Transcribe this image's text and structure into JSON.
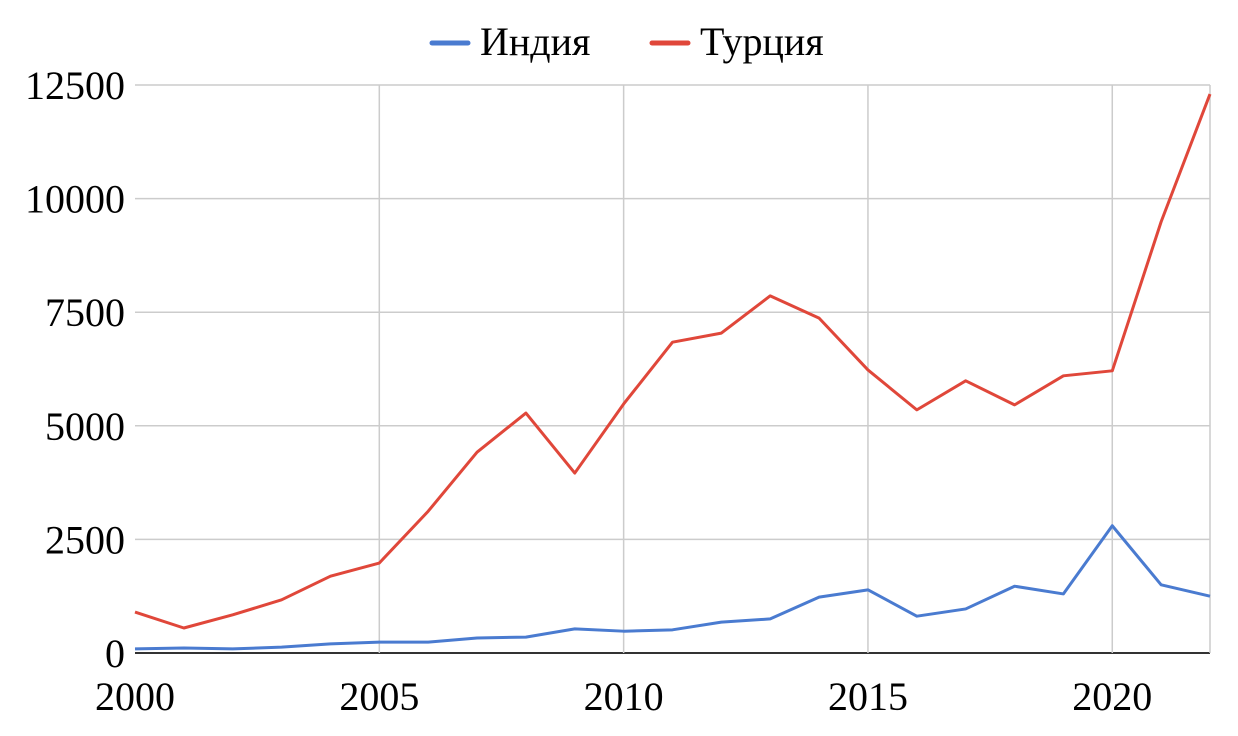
{
  "chart_data": {
    "type": "line",
    "x": [
      2000,
      2001,
      2002,
      2003,
      2004,
      2005,
      2006,
      2007,
      2008,
      2009,
      2010,
      2011,
      2012,
      2013,
      2014,
      2015,
      2016,
      2017,
      2018,
      2019,
      2020,
      2021,
      2022
    ],
    "series": [
      {
        "name": "Индия",
        "color": "#4a7bd0",
        "values": [
          90,
          110,
          90,
          130,
          200,
          240,
          240,
          330,
          350,
          530,
          480,
          510,
          680,
          750,
          1230,
          1390,
          810,
          970,
          1470,
          1300,
          2800,
          1500,
          1250
        ]
      },
      {
        "name": "Турция",
        "color": "#e0473a",
        "values": [
          900,
          550,
          840,
          1170,
          1690,
          1980,
          3120,
          4420,
          5280,
          3960,
          5480,
          6840,
          7040,
          7860,
          7370,
          6230,
          5350,
          5990,
          5460,
          6100,
          6210,
          9490,
          12300
        ]
      }
    ],
    "xlim": [
      2000,
      2022
    ],
    "ylim": [
      0,
      12500
    ],
    "x_ticks": [
      "2000",
      "2005",
      "2010",
      "2015",
      "2020"
    ],
    "y_ticks": [
      "0",
      "2500",
      "5000",
      "7500",
      "10000",
      "12500"
    ],
    "grid": true,
    "legend_position": "top"
  }
}
